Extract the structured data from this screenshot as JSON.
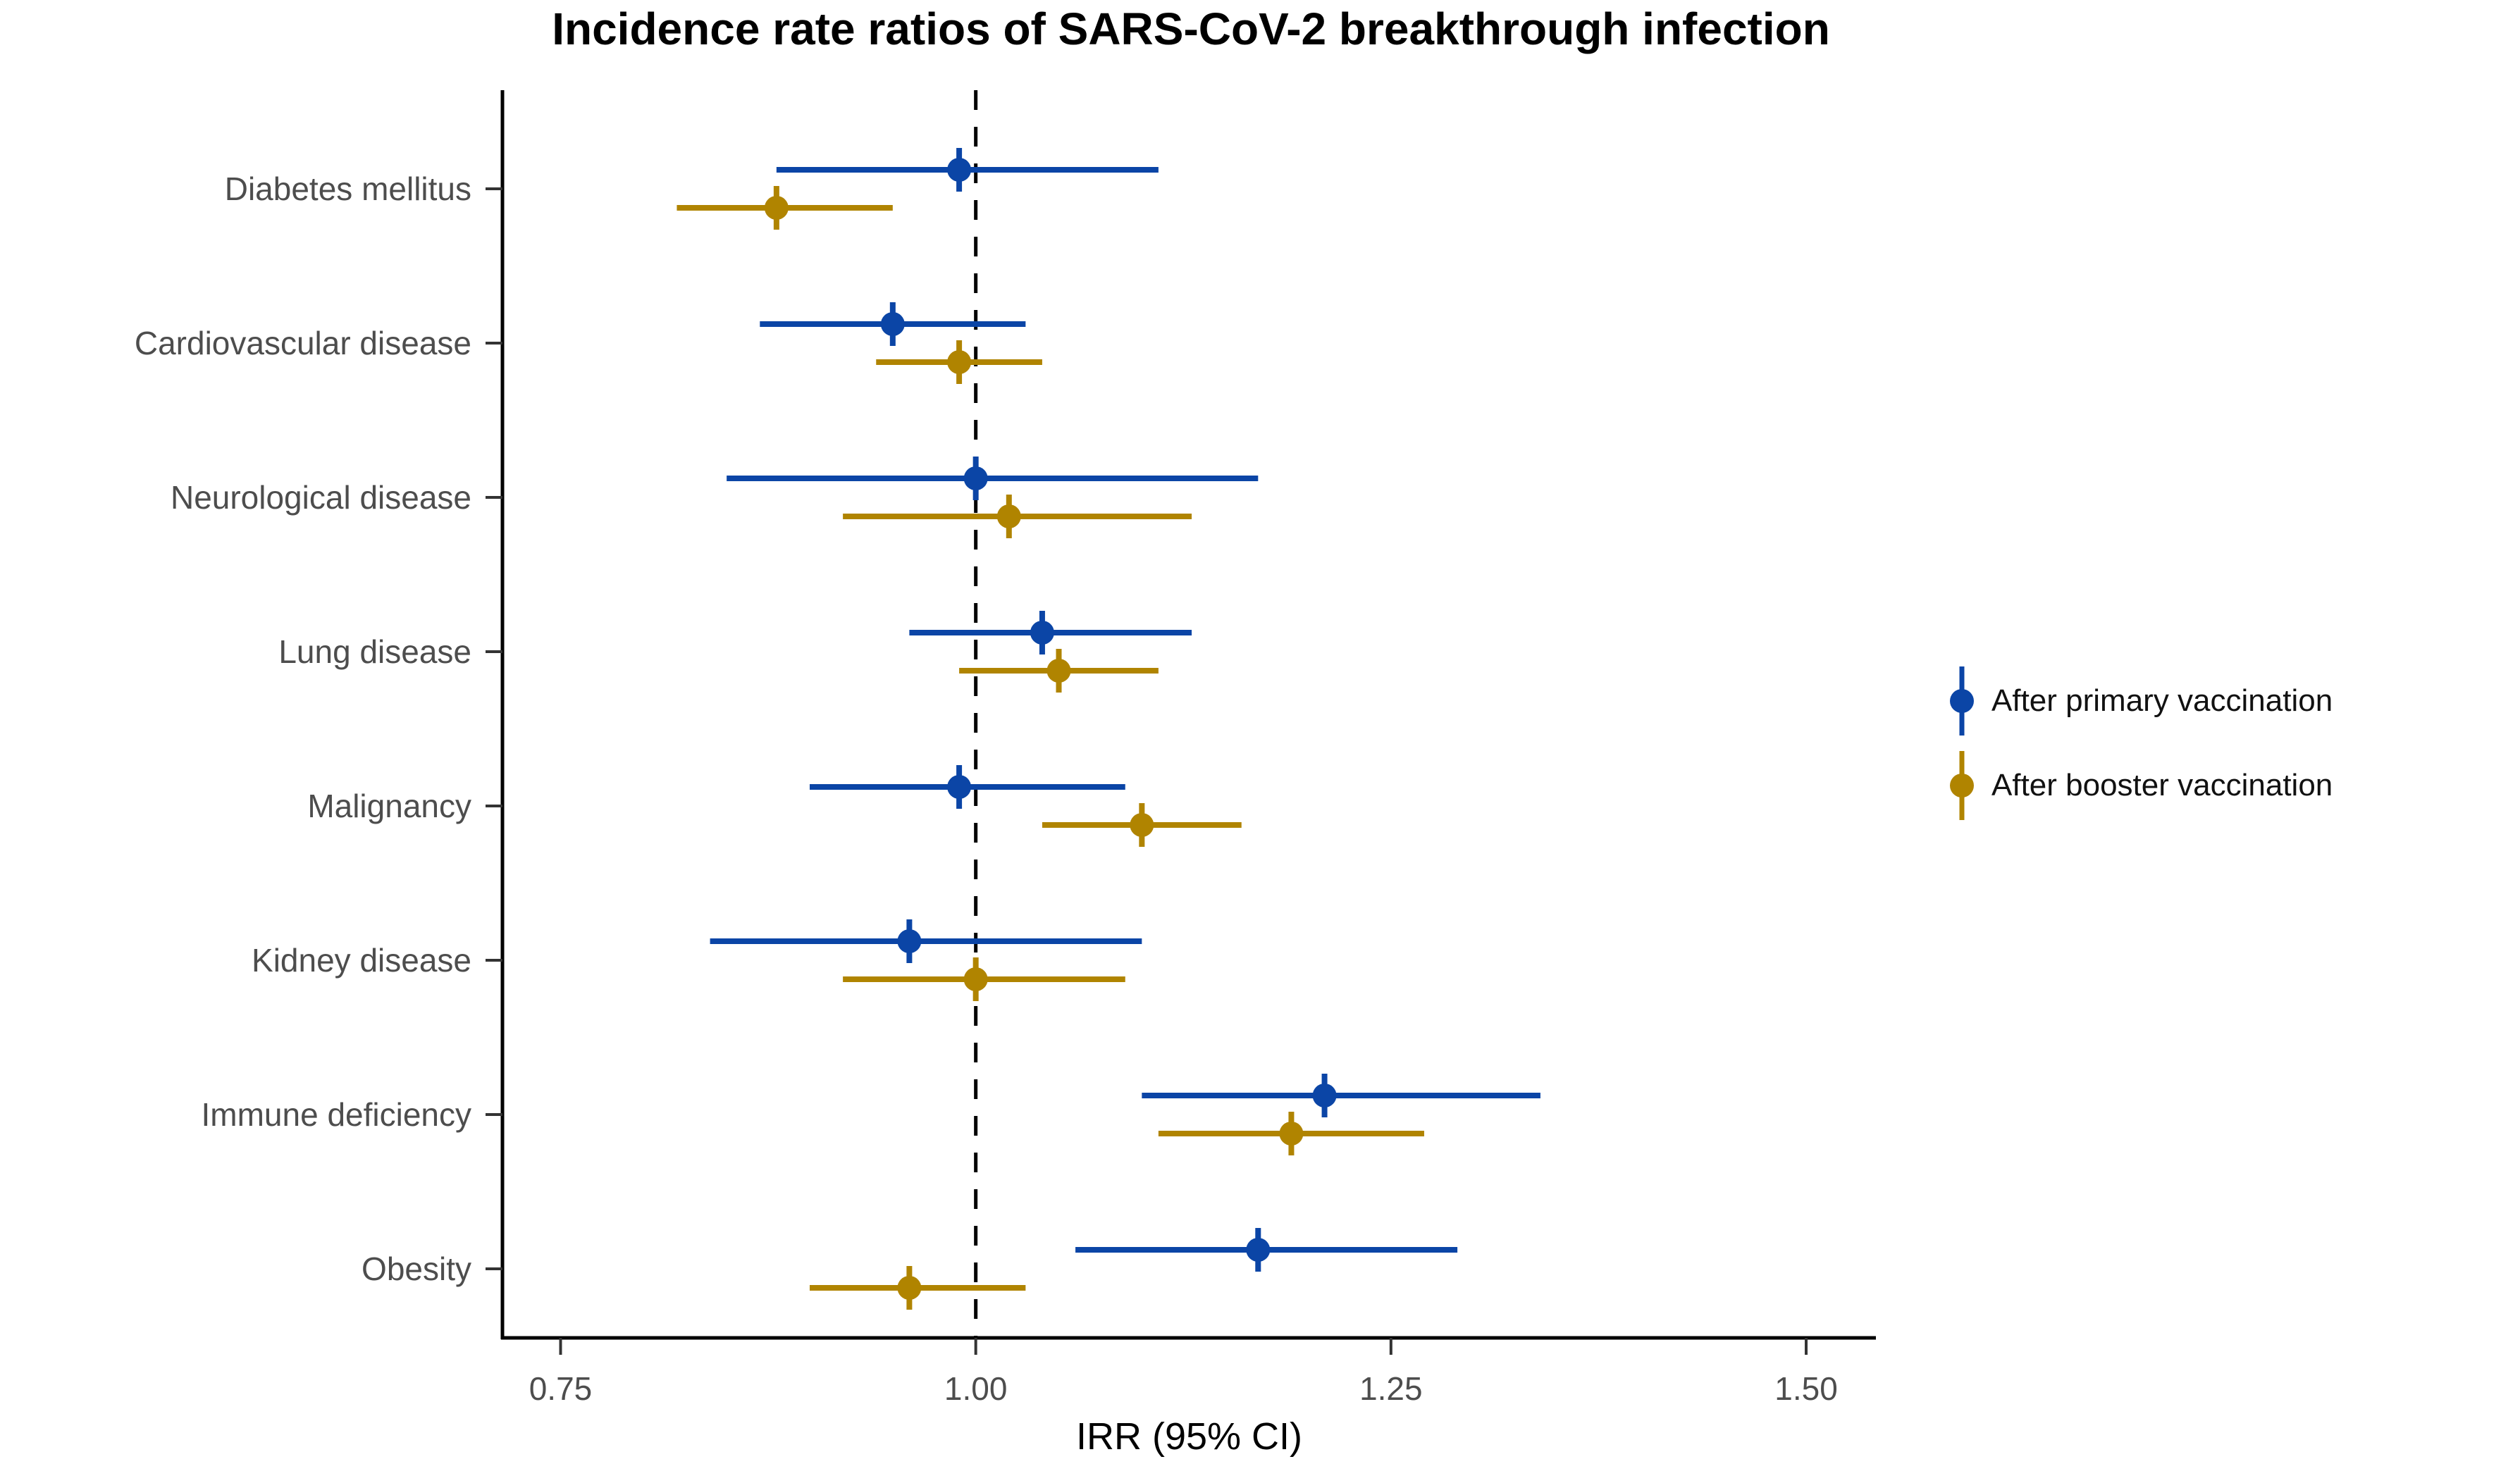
{
  "title": "Incidence rate ratios of SARS-CoV-2 breakthrough infection",
  "chart_data": {
    "type": "scatter",
    "subtype": "forest-plot-pointrange",
    "title": "Incidence rate ratios of SARS-CoV-2 breakthrough infection",
    "xlabel": "IRR (95% CI)",
    "ylabel": "",
    "xlim": [
      0.715,
      1.542
    ],
    "x_ticks": [
      0.75,
      1.0,
      1.25,
      1.5
    ],
    "x_tick_labels": [
      "0.75",
      "1.00",
      "1.25",
      "1.50"
    ],
    "reference_line_x": 1.0,
    "grid": false,
    "legend_position": "right",
    "categories": [
      "Diabetes mellitus",
      "Cardiovascular disease",
      "Neurological disease",
      "Lung disease",
      "Malignancy",
      "Kidney disease",
      "Immune deficiency",
      "Obesity"
    ],
    "series": [
      {
        "name": "After primary vaccination",
        "color": "#0b45a6",
        "points": [
          {
            "category": "Diabetes mellitus",
            "irr": 0.99,
            "lo": 0.88,
            "hi": 1.11
          },
          {
            "category": "Cardiovascular disease",
            "irr": 0.95,
            "lo": 0.87,
            "hi": 1.03
          },
          {
            "category": "Neurological disease",
            "irr": 1.0,
            "lo": 0.85,
            "hi": 1.17
          },
          {
            "category": "Lung disease",
            "irr": 1.04,
            "lo": 0.96,
            "hi": 1.13
          },
          {
            "category": "Malignancy",
            "irr": 0.99,
            "lo": 0.9,
            "hi": 1.09
          },
          {
            "category": "Kidney disease",
            "irr": 0.96,
            "lo": 0.84,
            "hi": 1.1
          },
          {
            "category": "Immune deficiency",
            "irr": 1.21,
            "lo": 1.1,
            "hi": 1.34
          },
          {
            "category": "Obesity",
            "irr": 1.17,
            "lo": 1.06,
            "hi": 1.29
          }
        ]
      },
      {
        "name": "After booster vaccination",
        "color": "#b08400",
        "points": [
          {
            "category": "Diabetes mellitus",
            "irr": 0.88,
            "lo": 0.82,
            "hi": 0.95
          },
          {
            "category": "Cardiovascular disease",
            "irr": 0.99,
            "lo": 0.94,
            "hi": 1.04
          },
          {
            "category": "Neurological disease",
            "irr": 1.02,
            "lo": 0.92,
            "hi": 1.13
          },
          {
            "category": "Lung disease",
            "irr": 1.05,
            "lo": 0.99,
            "hi": 1.11
          },
          {
            "category": "Malignancy",
            "irr": 1.1,
            "lo": 1.04,
            "hi": 1.16
          },
          {
            "category": "Kidney disease",
            "irr": 1.0,
            "lo": 0.92,
            "hi": 1.09
          },
          {
            "category": "Immune deficiency",
            "irr": 1.19,
            "lo": 1.11,
            "hi": 1.27
          },
          {
            "category": "Obesity",
            "irr": 0.96,
            "lo": 0.9,
            "hi": 1.03
          }
        ]
      }
    ],
    "style_colors": {
      "axis_line": "#000000",
      "tick_mark": "#333333",
      "axis_text": "#4d4d4d",
      "reference_line": "#000000"
    }
  }
}
